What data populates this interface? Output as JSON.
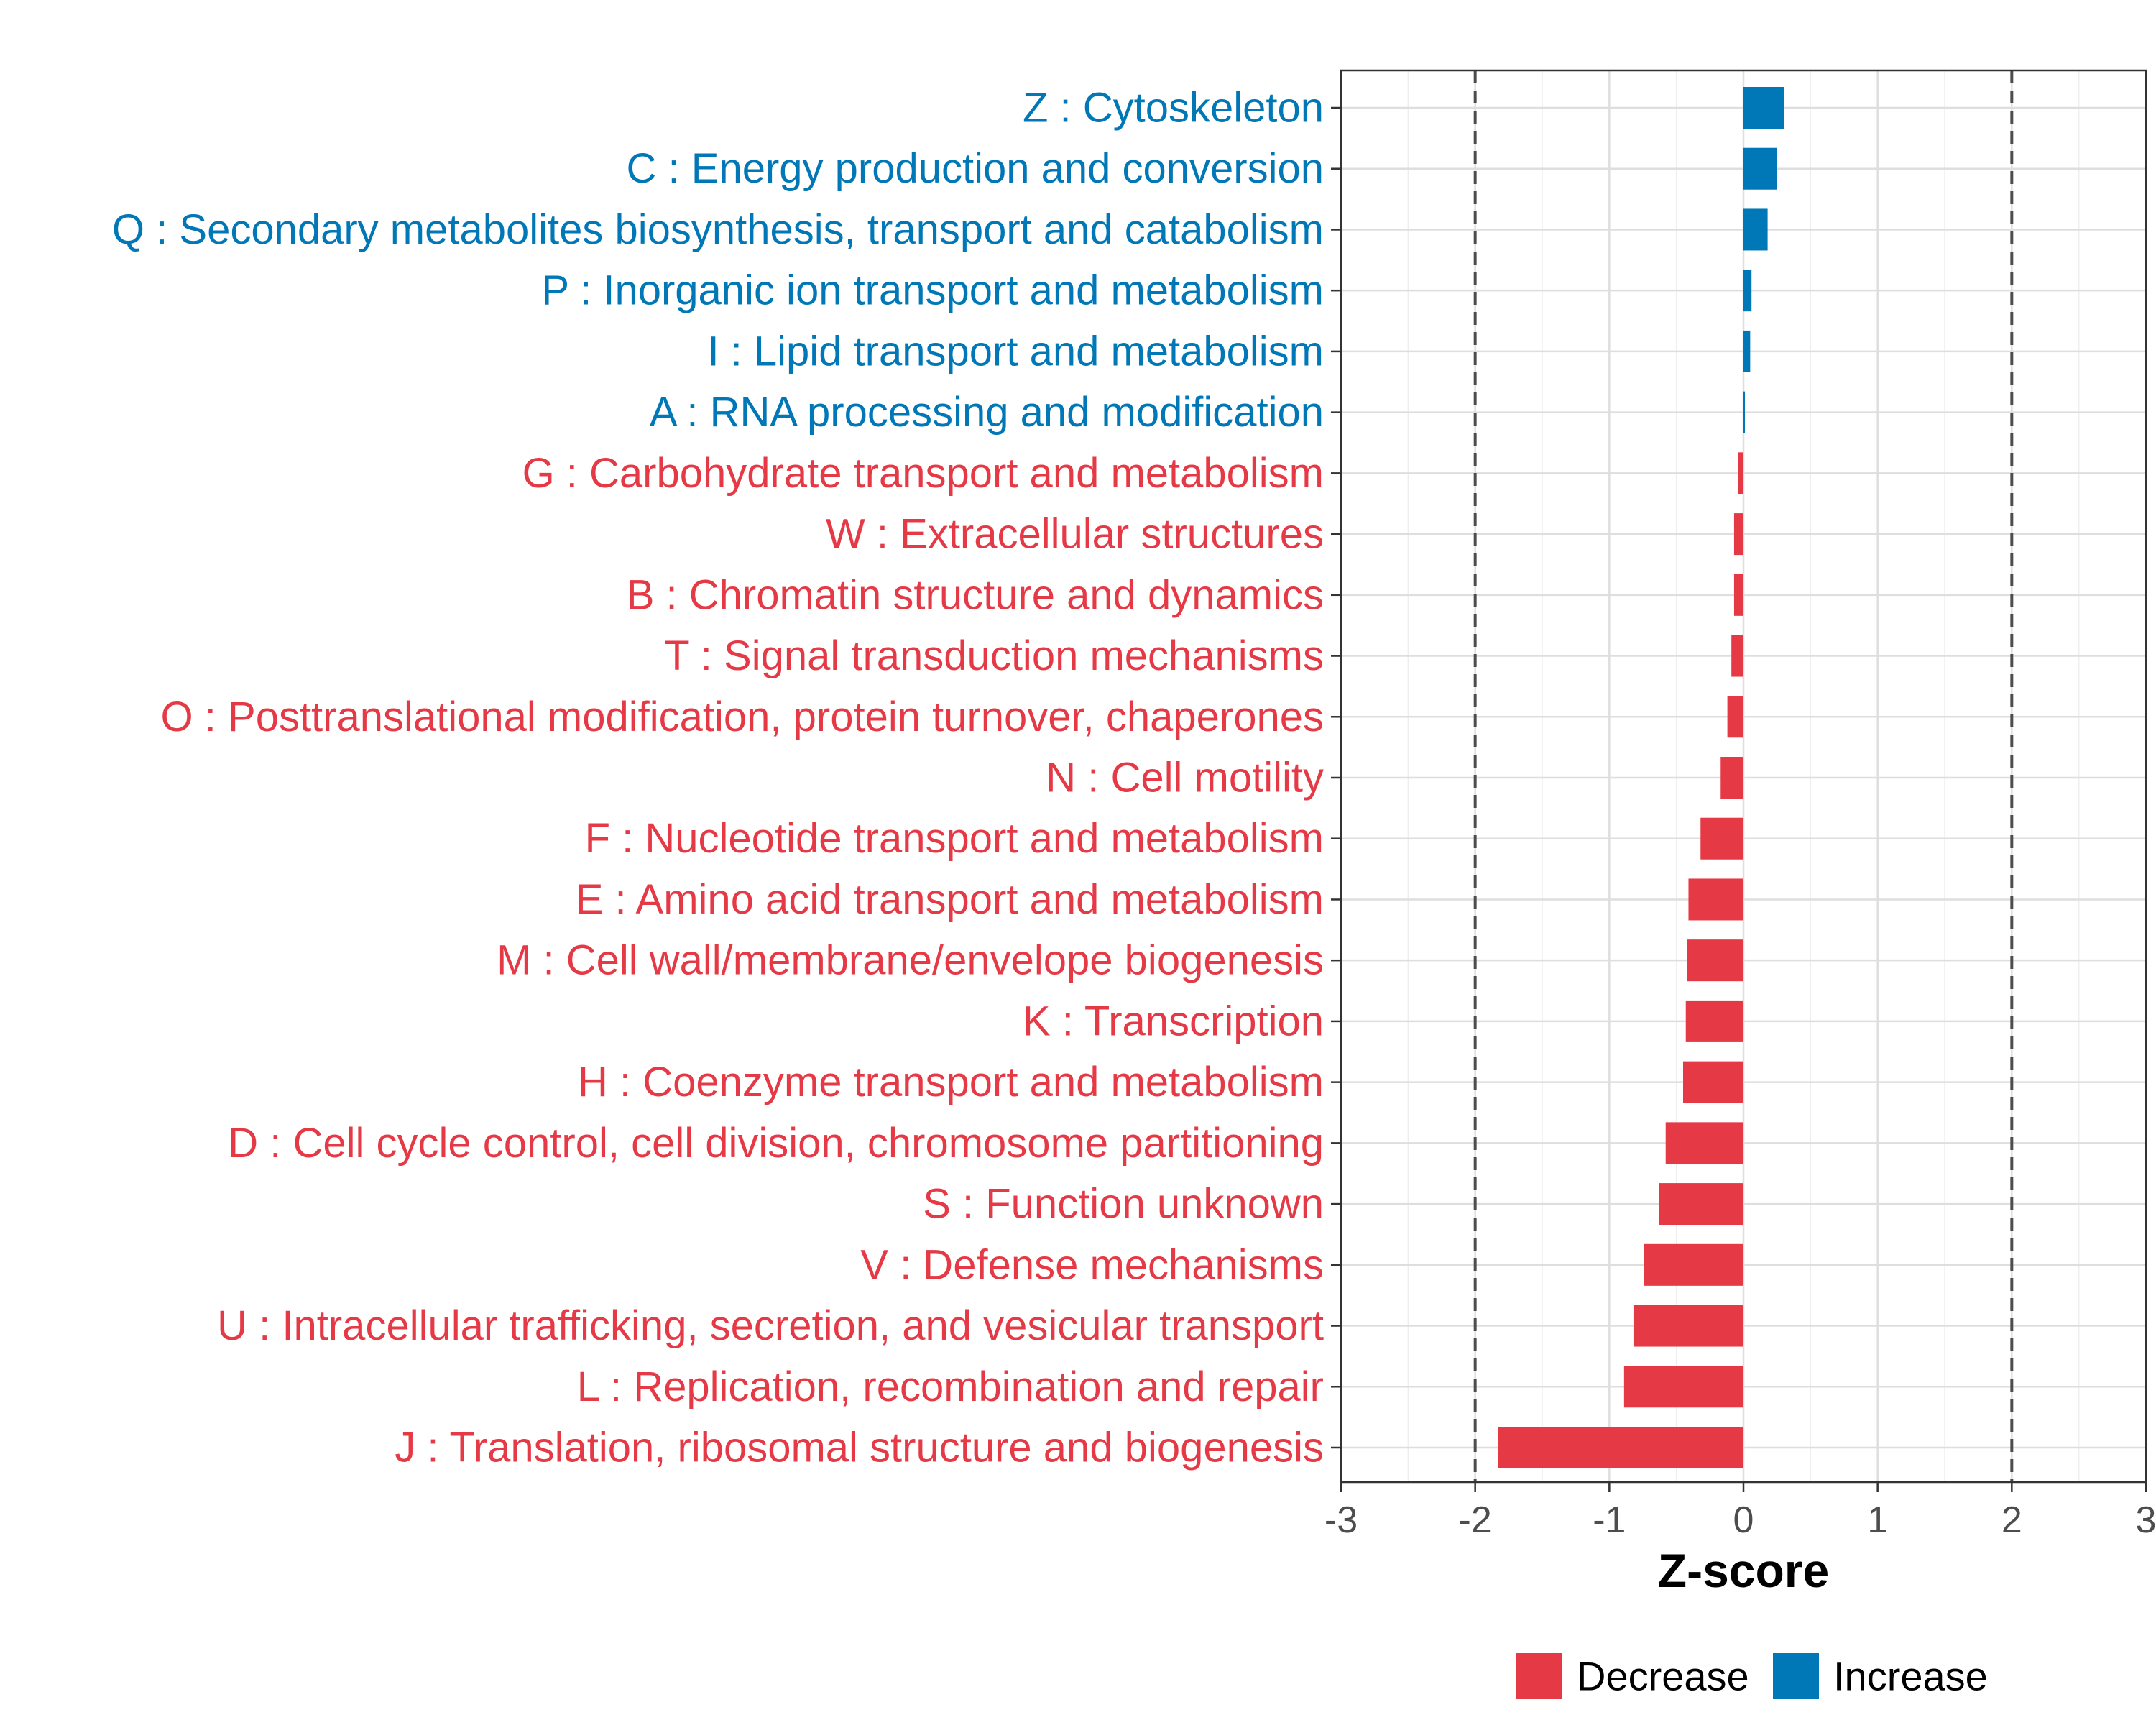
{
  "chart_data": {
    "type": "bar",
    "orientation": "horizontal",
    "xlabel": "Z-score",
    "xlim": [
      -3,
      3
    ],
    "xticks": [
      -3,
      -2,
      -1,
      0,
      1,
      2,
      3
    ],
    "xtick_labels": [
      "-3",
      "-2",
      "-1",
      "0",
      "1",
      "2",
      "3"
    ],
    "reference_lines": [
      -2,
      2
    ],
    "grid": true,
    "legend_position": "bottom",
    "colors": {
      "Decrease": "#E63946",
      "Increase": "#0077B6"
    },
    "legend": [
      {
        "name": "Decrease",
        "label": "Decrease",
        "color": "#E63946"
      },
      {
        "name": "Increase",
        "label": "Increase",
        "color": "#0077B6"
      }
    ],
    "bars": [
      {
        "label": "Z : Cytoskeleton",
        "value": 0.3,
        "direction": "Increase"
      },
      {
        "label": "C : Energy production and conversion",
        "value": 0.25,
        "direction": "Increase"
      },
      {
        "label": "Q : Secondary metabolites biosynthesis, transport and catabolism",
        "value": 0.18,
        "direction": "Increase"
      },
      {
        "label": "P : Inorganic ion transport and metabolism",
        "value": 0.06,
        "direction": "Increase"
      },
      {
        "label": "I : Lipid transport and metabolism",
        "value": 0.05,
        "direction": "Increase"
      },
      {
        "label": "A : RNA processing and modification",
        "value": 0.01,
        "direction": "Increase"
      },
      {
        "label": "G : Carbohydrate transport and metabolism",
        "value": -0.04,
        "direction": "Decrease"
      },
      {
        "label": "W : Extracellular structures",
        "value": -0.07,
        "direction": "Decrease"
      },
      {
        "label": "B : Chromatin structure and dynamics",
        "value": -0.07,
        "direction": "Decrease"
      },
      {
        "label": "T : Signal transduction mechanisms",
        "value": -0.09,
        "direction": "Decrease"
      },
      {
        "label": "O : Posttranslational modification, protein turnover, chaperones",
        "value": -0.12,
        "direction": "Decrease"
      },
      {
        "label": "N : Cell motility",
        "value": -0.17,
        "direction": "Decrease"
      },
      {
        "label": "F : Nucleotide transport and metabolism",
        "value": -0.32,
        "direction": "Decrease"
      },
      {
        "label": "E : Amino acid transport and metabolism",
        "value": -0.41,
        "direction": "Decrease"
      },
      {
        "label": "M : Cell wall/membrane/envelope biogenesis",
        "value": -0.42,
        "direction": "Decrease"
      },
      {
        "label": "K : Transcription",
        "value": -0.43,
        "direction": "Decrease"
      },
      {
        "label": "H : Coenzyme transport and metabolism",
        "value": -0.45,
        "direction": "Decrease"
      },
      {
        "label": "D : Cell cycle control, cell division, chromosome partitioning",
        "value": -0.58,
        "direction": "Decrease"
      },
      {
        "label": "S : Function unknown",
        "value": -0.63,
        "direction": "Decrease"
      },
      {
        "label": "V : Defense mechanisms",
        "value": -0.74,
        "direction": "Decrease"
      },
      {
        "label": "U : Intracellular trafficking, secretion, and vesicular transport",
        "value": -0.82,
        "direction": "Decrease"
      },
      {
        "label": "L : Replication, recombination and repair",
        "value": -0.89,
        "direction": "Decrease"
      },
      {
        "label": "J : Translation, ribosomal structure and biogenesis",
        "value": -1.83,
        "direction": "Decrease"
      }
    ]
  }
}
